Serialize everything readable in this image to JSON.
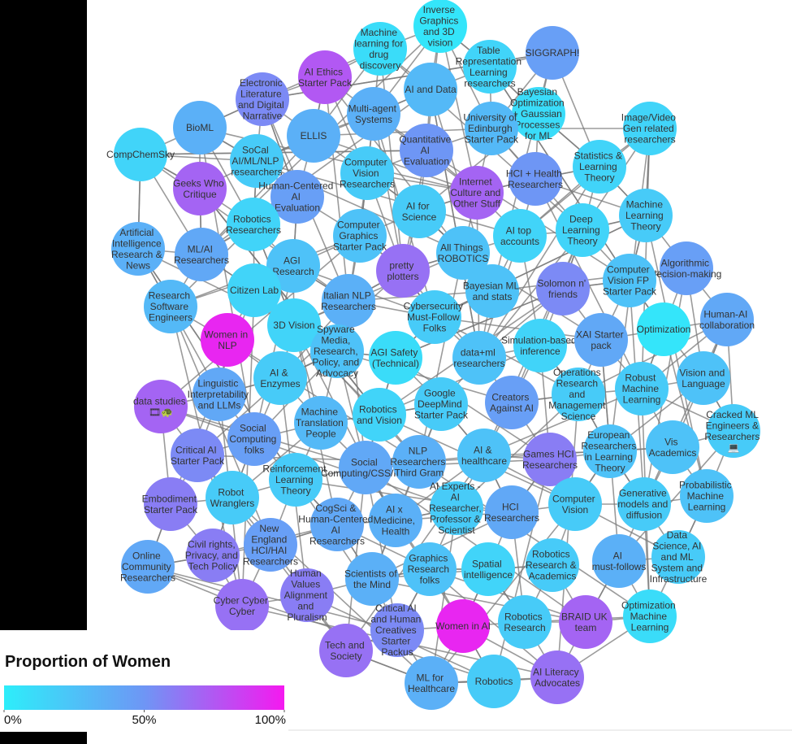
{
  "legend": {
    "title": "Proportion of Women",
    "ticks": [
      {
        "value": 0,
        "label": "0%"
      },
      {
        "value": 50,
        "label": "50%"
      },
      {
        "value": 100,
        "label": "100%"
      }
    ]
  },
  "nodes": [
    {
      "label": "Inverse Graphics and 3D vision",
      "women": 5
    },
    {
      "label": "Machine learning for drug discovery",
      "women": 10
    },
    {
      "label": "SIGGRAPH!",
      "women": 45
    },
    {
      "label": "AI Ethics Starter Pack",
      "women": 75
    },
    {
      "label": "Table Representation Learning researchers",
      "women": 15
    },
    {
      "label": "Electronic Literature and Digital Narrative",
      "women": 55
    },
    {
      "label": "AI and Data",
      "women": 30
    },
    {
      "label": "Bayesian Optimization + Gaussian Processes for ML",
      "women": 10
    },
    {
      "label": "BioML",
      "women": 35
    },
    {
      "label": "ELLIS",
      "women": 35
    },
    {
      "label": "Multi-agent Systems",
      "women": 35
    },
    {
      "label": "University of Edinburgh Starter Pack",
      "women": 30
    },
    {
      "label": "Image/Video Gen related researchers",
      "women": 15
    },
    {
      "label": "CompChemSky",
      "women": 15
    },
    {
      "label": "SoCal AI/ML/NLP researchers",
      "women": 20
    },
    {
      "label": "Quantitative AI Evaluation",
      "women": 50
    },
    {
      "label": "Computer Vision Researchers",
      "women": 20
    },
    {
      "label": "Statistics & Learning Theory",
      "women": 15
    },
    {
      "label": "Geeks Who Critique",
      "women": 70
    },
    {
      "label": "Human-Centered AI Evaluation",
      "women": 45
    },
    {
      "label": "Internet Culture and Other Stuff",
      "women": 70
    },
    {
      "label": "HCI + Health Researchers",
      "women": 50
    },
    {
      "label": "AI for Science",
      "women": 20
    },
    {
      "label": "Robotics Researchers",
      "women": 15
    },
    {
      "label": "Machine Learning Theory",
      "women": 20
    },
    {
      "label": "Computer Graphics Starter Pack",
      "women": 25
    },
    {
      "label": "Deep Learning Theory",
      "women": 15
    },
    {
      "label": "AI top accounts",
      "women": 15
    },
    {
      "label": "Artificial Intelligence Research & News",
      "women": 35
    },
    {
      "label": "ML/AI Researchers",
      "women": 40
    },
    {
      "label": "All Things ROBOTICS",
      "women": 25
    },
    {
      "label": "AGI Research",
      "women": 25
    },
    {
      "label": "pretty plotters",
      "women": 65
    },
    {
      "label": "Algorithmic decision-making",
      "women": 45
    },
    {
      "label": "Solomon n' friends",
      "women": 55
    },
    {
      "label": "Computer Vision FP Starter Pack",
      "women": 25
    },
    {
      "label": "Citizen Lab",
      "women": 15
    },
    {
      "label": "Bayesian ML and stats",
      "women": 25
    },
    {
      "label": "Research Software Engineers",
      "women": 30
    },
    {
      "label": "Italian NLP Researchers",
      "women": 35
    },
    {
      "label": "Cybersecurity Must-Follow Folks",
      "women": 20
    },
    {
      "label": "Human-AI collaboration",
      "women": 40
    },
    {
      "label": "3D Vision",
      "women": 15
    },
    {
      "label": "Optimization",
      "women": 5
    },
    {
      "label": "Women in NLP",
      "women": 95
    },
    {
      "label": "Spyware Media, Research, Policy, and Advocacy",
      "women": 25
    },
    {
      "label": "AGI Safety (Technical)",
      "women": 10
    },
    {
      "label": "Simulation-based inference",
      "women": 15
    },
    {
      "label": "XAI Starter pack",
      "women": 40
    },
    {
      "label": "data+ml researchers",
      "women": 25
    },
    {
      "label": "AI & Enzymes",
      "women": 20
    },
    {
      "label": "Vision and Language",
      "women": 25
    },
    {
      "label": "Linguistic Interpretability and LLMs",
      "women": 40
    },
    {
      "label": "data studies 🎞🐢",
      "women": 70
    },
    {
      "label": "Operations Research and Management Science",
      "women": 20
    },
    {
      "label": "Robust Machine Learning",
      "women": 20
    },
    {
      "label": "Google DeepMind Starter Pack",
      "women": 20
    },
    {
      "label": "Creators Against AI",
      "women": 45
    },
    {
      "label": "Robotics and Vision",
      "women": 15
    },
    {
      "label": "Machine Translation People",
      "women": 30
    },
    {
      "label": "Cracked ML Engineers & Researchers 💻",
      "women": 20
    },
    {
      "label": "Vis Academics",
      "women": 25
    },
    {
      "label": "Critical AI Starter Pack",
      "women": 55
    },
    {
      "label": "Social Computing folks",
      "women": 45
    },
    {
      "label": "European Researchers in Learning Theory",
      "women": 25
    },
    {
      "label": "Social Computing/CSS/HCI",
      "women": 40
    },
    {
      "label": "NLP Researchers Third Gram",
      "women": 35
    },
    {
      "label": "AI & healthcare",
      "women": 25
    },
    {
      "label": "Games HCI Researchers",
      "women": 60
    },
    {
      "label": "Reinforcement Learning Theory",
      "women": 20
    },
    {
      "label": "Robot Wranglers",
      "women": 20
    },
    {
      "label": "Probabilistic Machine Learning",
      "women": 25
    },
    {
      "label": "Embodiment Starter Pack",
      "women": 60
    },
    {
      "label": "AI Experts - AI Researcher, Professor & Scientist",
      "women": 20
    },
    {
      "label": "HCI Researchers",
      "women": 40
    },
    {
      "label": "Computer Vision",
      "women": 20
    },
    {
      "label": "Generative models and diffusion",
      "women": 20
    },
    {
      "label": "AI x Medicine, Health",
      "women": 35
    },
    {
      "label": "CogSci & Human-Centered AI Researchers",
      "women": 40
    },
    {
      "label": "New England HCI/HAI Researchers",
      "women": 45
    },
    {
      "label": "Civil rights, Privacy, and Tech Policy",
      "women": 60
    },
    {
      "label": "Online Community Researchers",
      "women": 40
    },
    {
      "label": "Data Science, AI and ML System and Infrastructure",
      "women": 20
    },
    {
      "label": "Spatial intelligence",
      "women": 15
    },
    {
      "label": "Robotics Research & Academics",
      "women": 20
    },
    {
      "label": "AI must-follows",
      "women": 35
    },
    {
      "label": "Graphics Research folks",
      "women": 25
    },
    {
      "label": "Scientists of the Mind",
      "women": 35
    },
    {
      "label": "Human Values Alignment and Pluralism",
      "women": 60
    },
    {
      "label": "Cyber Cyber Cyber",
      "women": 65
    },
    {
      "label": "Critical AI and Human Creatives Starter Packus",
      "women": 55
    },
    {
      "label": "Women in AI",
      "women": 95
    },
    {
      "label": "Robotics Research",
      "women": 20
    },
    {
      "label": "BRAID UK team",
      "women": 70
    },
    {
      "label": "Optimization Machine Learning",
      "women": 10
    },
    {
      "label": "Tech and Society",
      "women": 65
    },
    {
      "label": "ML for Healthcare",
      "women": 35
    },
    {
      "label": "Robotics",
      "women": 20
    },
    {
      "label": "AI Literacy Advocates",
      "women": 65
    }
  ]
}
